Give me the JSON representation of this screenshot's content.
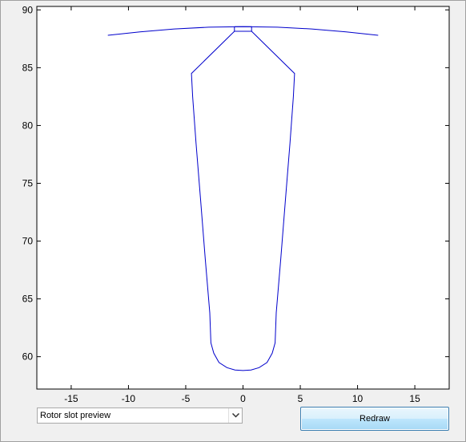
{
  "controls": {
    "dropdown_selected": "Rotor slot preview",
    "dropdown_arrow_icon": "chevron-down-icon",
    "redraw_label": "Redraw"
  },
  "colors": {
    "line": "#0000cc",
    "axes_background": "#ffffff",
    "figure_background": "#f0f0f0"
  },
  "chart_data": {
    "type": "line",
    "title": "",
    "xlabel": "",
    "ylabel": "",
    "xlim": [
      -18,
      18
    ],
    "ylim": [
      57.2,
      90.3
    ],
    "xticks": [
      -15,
      -10,
      -5,
      0,
      5,
      10,
      15
    ],
    "yticks": [
      60,
      65,
      70,
      75,
      80,
      85,
      90
    ],
    "grid": false,
    "legend": "none",
    "series": [
      {
        "x": [
          -11.8,
          -9,
          -6,
          -3,
          0,
          3,
          6,
          9,
          11.8
        ],
        "y": [
          87.8,
          88.1,
          88.35,
          88.5,
          88.55,
          88.5,
          88.35,
          88.1,
          87.8
        ]
      },
      {
        "x": [
          -0.75,
          0.75,
          0.75,
          -0.75,
          -0.75
        ],
        "y": [
          88.55,
          88.55,
          88.15,
          88.15,
          88.55
        ]
      },
      {
        "x": [
          -0.75,
          -4.5,
          -4.4,
          -4.1,
          -3.7,
          -3.3,
          -2.9,
          -2.8,
          -2.55,
          -2.1,
          -1.4,
          -0.7,
          0,
          0.7,
          1.4,
          2.1,
          2.55,
          2.8,
          2.9,
          3.3,
          3.7,
          4.1,
          4.4,
          4.5,
          0.75
        ],
        "y": [
          88.15,
          84.5,
          82.5,
          78.5,
          73.5,
          68.5,
          63.8,
          61.2,
          60.3,
          59.5,
          59.05,
          58.85,
          58.8,
          58.85,
          59.05,
          59.5,
          60.3,
          61.2,
          63.8,
          68.5,
          73.5,
          78.5,
          82.5,
          84.5,
          88.15
        ]
      }
    ]
  }
}
